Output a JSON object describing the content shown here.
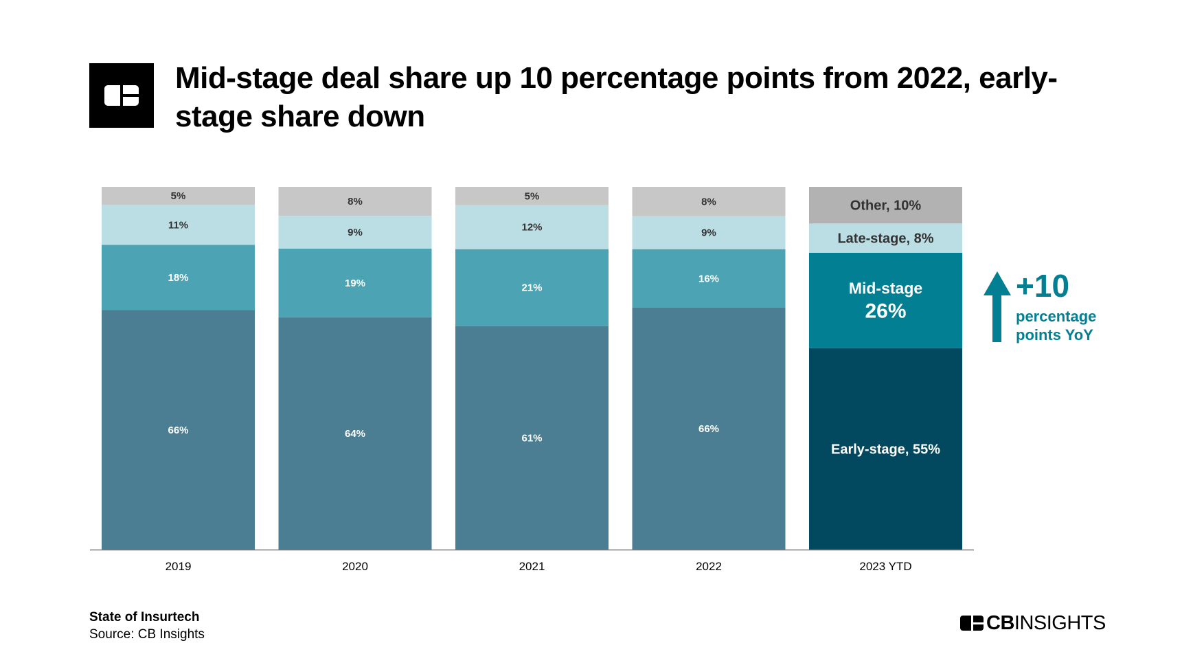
{
  "header": {
    "title": "Mid-stage deal share up 10 percentage points from 2022, early-stage share down"
  },
  "footer": {
    "report_title": "State of Insurtech",
    "source": "Source: CB Insights",
    "brand_bold": "CB",
    "brand_light": "INSIGHTS"
  },
  "chart_data": {
    "type": "bar",
    "stacked": true,
    "normalized_percent": true,
    "categories": [
      "2019",
      "2020",
      "2021",
      "2022",
      "2023 YTD"
    ],
    "series": [
      {
        "key": "early",
        "values": [
          66,
          64,
          61,
          66,
          55
        ],
        "labels": [
          "66%",
          "64%",
          "61%",
          "66%",
          "Early-stage, 55%"
        ]
      },
      {
        "key": "mid",
        "values": [
          18,
          19,
          21,
          16,
          26
        ],
        "labels": [
          "18%",
          "19%",
          "21%",
          "16%",
          "Mid-stage|26%"
        ]
      },
      {
        "key": "late",
        "values": [
          11,
          9,
          12,
          9,
          8
        ],
        "labels": [
          "11%",
          "9%",
          "12%",
          "9%",
          "Late-stage, 8%"
        ]
      },
      {
        "key": "other",
        "values": [
          5,
          8,
          5,
          8,
          10
        ],
        "labels": [
          "5%",
          "8%",
          "5%",
          "8%",
          "Other, 10%"
        ]
      }
    ],
    "colors": {
      "early": "#4b7d93",
      "mid": "#4ba3b4",
      "late": "#bbdee5",
      "other": "#c7c7c7",
      "highlight_early": "#02485f",
      "highlight_mid": "#037f93",
      "highlight_late": "#bbdee5",
      "highlight_other": "#b2b2b2",
      "annotation": "#037f93"
    },
    "highlight_index": 4,
    "annotation": {
      "value": "+10",
      "line1": "percentage",
      "line2": "points YoY",
      "icon": "arrow-up-icon"
    },
    "ylim": [
      0,
      100
    ],
    "legend": "none",
    "grid": false
  }
}
